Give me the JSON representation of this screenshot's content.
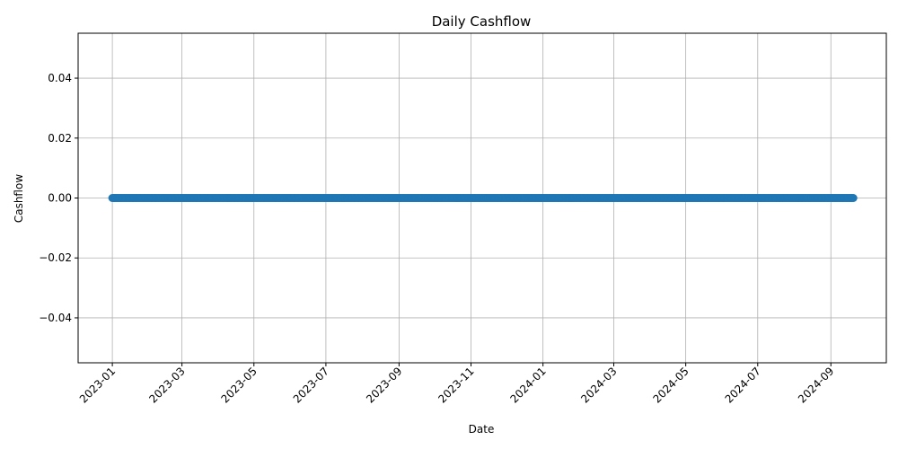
{
  "chart_data": {
    "type": "line",
    "title": "Daily Cashflow",
    "xlabel": "Date",
    "ylabel": "Cashflow",
    "x_range": [
      "2022-12-03",
      "2024-10-18"
    ],
    "ylim": [
      -0.055,
      0.055
    ],
    "grid": true,
    "marker": "circle",
    "series_color": "#1f77b4",
    "x_ticks": [
      {
        "date": "2023-01-01",
        "label": "2023-01"
      },
      {
        "date": "2023-03-01",
        "label": "2023-03"
      },
      {
        "date": "2023-05-01",
        "label": "2023-05"
      },
      {
        "date": "2023-07-01",
        "label": "2023-07"
      },
      {
        "date": "2023-09-01",
        "label": "2023-09"
      },
      {
        "date": "2023-11-01",
        "label": "2023-11"
      },
      {
        "date": "2024-01-01",
        "label": "2024-01"
      },
      {
        "date": "2024-03-01",
        "label": "2024-03"
      },
      {
        "date": "2024-05-01",
        "label": "2024-05"
      },
      {
        "date": "2024-07-01",
        "label": "2024-07"
      },
      {
        "date": "2024-09-01",
        "label": "2024-09"
      }
    ],
    "y_ticks": [
      {
        "value": 0.04,
        "label": "0.04"
      },
      {
        "value": 0.02,
        "label": "0.02"
      },
      {
        "value": 0.0,
        "label": "0.00"
      },
      {
        "value": -0.02,
        "label": "−0.02"
      },
      {
        "value": -0.04,
        "label": "−0.04"
      }
    ],
    "series": [
      {
        "x_start": "2023-01-01",
        "x_end": "2024-09-20",
        "frequency": "daily",
        "values_constant": 0.0
      }
    ]
  }
}
